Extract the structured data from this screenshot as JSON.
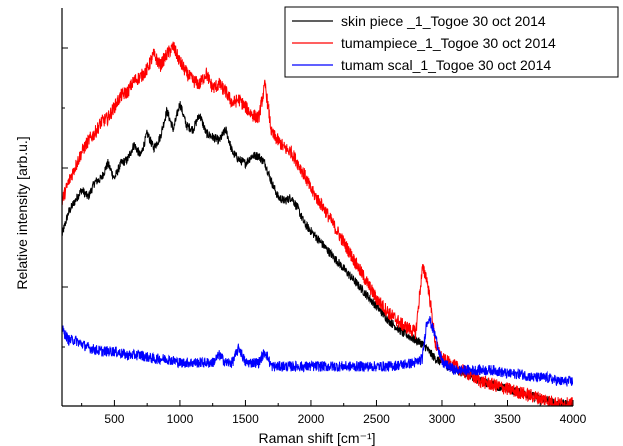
{
  "chart_data": {
    "type": "line",
    "title": "",
    "xlabel": "Raman shift [cm⁻¹]",
    "ylabel": "Relative intensity [arb.u.]",
    "xlim": [
      100,
      4000
    ],
    "ylim": [
      0,
      1
    ],
    "x_ticks": [
      500,
      1000,
      1500,
      2000,
      2500,
      3000,
      3500,
      4000
    ],
    "y_tick_labels_shown": false,
    "grid": false,
    "legend_position": "top-right",
    "series": [
      {
        "name": "skin piece _1_Togoe 30 oct 2014",
        "color": "#000000",
        "x": [
          100,
          150,
          200,
          250,
          300,
          350,
          400,
          450,
          500,
          550,
          600,
          650,
          700,
          750,
          800,
          850,
          900,
          950,
          1000,
          1050,
          1100,
          1150,
          1200,
          1250,
          1300,
          1350,
          1400,
          1450,
          1500,
          1550,
          1600,
          1650,
          1700,
          1750,
          1800,
          1850,
          1900,
          1950,
          2000,
          2100,
          2200,
          2300,
          2400,
          2500,
          2600,
          2700,
          2800,
          2850,
          2880,
          2900,
          2950,
          3000,
          3100,
          3200,
          3300,
          3400,
          3500,
          3600,
          3700,
          3800,
          3900,
          4000
        ],
        "y": [
          0.45,
          0.51,
          0.54,
          0.57,
          0.55,
          0.59,
          0.6,
          0.64,
          0.6,
          0.64,
          0.65,
          0.69,
          0.66,
          0.72,
          0.68,
          0.71,
          0.78,
          0.73,
          0.8,
          0.74,
          0.73,
          0.77,
          0.72,
          0.71,
          0.7,
          0.73,
          0.67,
          0.65,
          0.64,
          0.66,
          0.66,
          0.64,
          0.59,
          0.55,
          0.54,
          0.55,
          0.52,
          0.48,
          0.46,
          0.42,
          0.38,
          0.34,
          0.3,
          0.26,
          0.22,
          0.19,
          0.17,
          0.16,
          0.15,
          0.14,
          0.12,
          0.11,
          0.09,
          0.08,
          0.06,
          0.05,
          0.04,
          0.03,
          0.02,
          0.01,
          0.0,
          0.0
        ]
      },
      {
        "name": "tumampiece_1_Togoe 30 oct 2014",
        "color": "#ff0000",
        "x": [
          100,
          150,
          200,
          250,
          300,
          350,
          400,
          450,
          500,
          550,
          600,
          650,
          700,
          750,
          800,
          850,
          900,
          950,
          1000,
          1050,
          1100,
          1150,
          1200,
          1250,
          1300,
          1350,
          1400,
          1450,
          1500,
          1550,
          1600,
          1650,
          1700,
          1750,
          1800,
          1850,
          1900,
          1950,
          2000,
          2100,
          2200,
          2300,
          2400,
          2500,
          2600,
          2700,
          2800,
          2850,
          2880,
          2900,
          2950,
          3000,
          3100,
          3200,
          3300,
          3400,
          3500,
          3600,
          3700,
          3800,
          3900,
          4000
        ],
        "y": [
          0.54,
          0.59,
          0.63,
          0.67,
          0.7,
          0.72,
          0.75,
          0.76,
          0.79,
          0.82,
          0.83,
          0.86,
          0.87,
          0.89,
          0.93,
          0.9,
          0.93,
          0.95,
          0.91,
          0.88,
          0.86,
          0.85,
          0.88,
          0.84,
          0.85,
          0.83,
          0.8,
          0.81,
          0.79,
          0.77,
          0.76,
          0.85,
          0.72,
          0.7,
          0.68,
          0.67,
          0.64,
          0.61,
          0.57,
          0.52,
          0.46,
          0.4,
          0.34,
          0.28,
          0.24,
          0.21,
          0.19,
          0.36,
          0.34,
          0.3,
          0.16,
          0.12,
          0.1,
          0.08,
          0.06,
          0.05,
          0.04,
          0.03,
          0.02,
          0.01,
          0.0,
          0.0
        ]
      },
      {
        "name": "tumam scal_1_Togoe 30 oct 2014",
        "color": "#0000ff",
        "x": [
          100,
          150,
          200,
          300,
          400,
          500,
          600,
          700,
          800,
          900,
          1000,
          1100,
          1200,
          1250,
          1300,
          1350,
          1400,
          1450,
          1500,
          1600,
          1650,
          1700,
          1800,
          2000,
          2200,
          2400,
          2600,
          2800,
          2850,
          2880,
          2900,
          2950,
          3000,
          3100,
          3200,
          3300,
          3400,
          3500,
          3600,
          3700,
          3800,
          3900,
          4000
        ],
        "y": [
          0.2,
          0.17,
          0.17,
          0.15,
          0.14,
          0.14,
          0.13,
          0.13,
          0.12,
          0.12,
          0.11,
          0.11,
          0.11,
          0.11,
          0.13,
          0.11,
          0.11,
          0.15,
          0.11,
          0.11,
          0.14,
          0.1,
          0.1,
          0.1,
          0.1,
          0.1,
          0.1,
          0.11,
          0.12,
          0.21,
          0.23,
          0.18,
          0.11,
          0.09,
          0.09,
          0.09,
          0.09,
          0.08,
          0.08,
          0.07,
          0.07,
          0.06,
          0.06
        ]
      }
    ]
  }
}
